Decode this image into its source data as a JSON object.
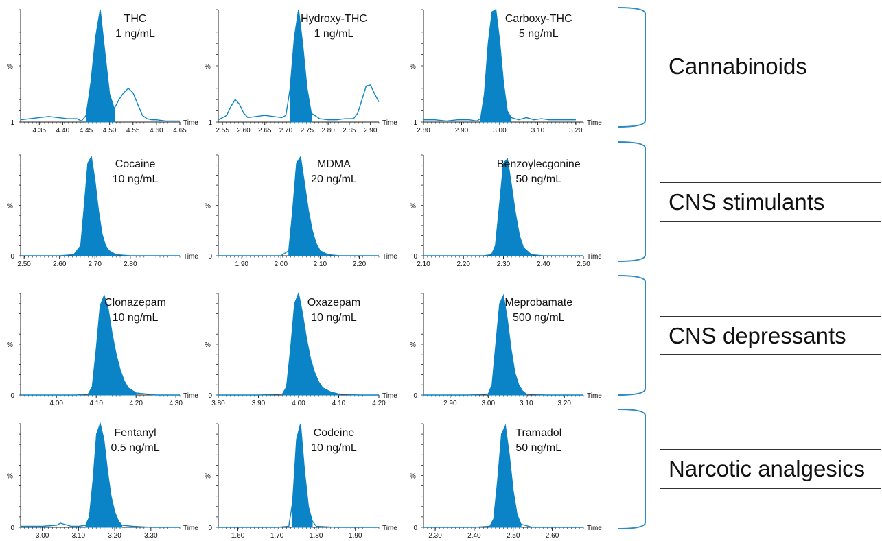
{
  "colors": {
    "peak": "#0a84c6",
    "axis": "#222222",
    "bracket": "#2b8bc2"
  },
  "labels": {
    "time": "Time",
    "percent": "%",
    "y_bottom_row1": "1",
    "y_bottom_other": "0"
  },
  "groups": [
    {
      "name": "Cannabinoids"
    },
    {
      "name": "CNS stimulants"
    },
    {
      "name": "CNS depressants"
    },
    {
      "name": "Narcotic analgesics"
    }
  ],
  "chart_data": [
    {
      "type": "area",
      "compound": "THC",
      "concentration": "1 ng/mL",
      "xlim": [
        4.31,
        4.65
      ],
      "xticks": [
        "4.35",
        "4.40",
        "4.45",
        "4.50",
        "4.55",
        "4.60",
        "4.65"
      ],
      "y_bottom_label": "1",
      "peak_rt": 4.48,
      "fill_range": [
        4.445,
        4.515
      ],
      "x": [
        4.31,
        4.33,
        4.35,
        4.37,
        4.39,
        4.41,
        4.43,
        4.44,
        4.45,
        4.46,
        4.47,
        4.48,
        4.49,
        4.5,
        4.51,
        4.52,
        4.53,
        4.54,
        4.55,
        4.56,
        4.57,
        4.58,
        4.59,
        4.6,
        4.62,
        4.64,
        4.65
      ],
      "y": [
        0.02,
        0.03,
        0.04,
        0.05,
        0.04,
        0.03,
        0.03,
        0.01,
        0.06,
        0.35,
        0.75,
        1.0,
        0.62,
        0.25,
        0.12,
        0.2,
        0.26,
        0.3,
        0.26,
        0.16,
        0.06,
        0.03,
        0.02,
        0.02,
        0.01,
        0.01,
        0.01
      ]
    },
    {
      "type": "area",
      "compound": "Hydroxy-THC",
      "concentration": "1 ng/mL",
      "xlim": [
        2.54,
        2.92
      ],
      "xticks": [
        "2.55",
        "2.60",
        "2.65",
        "2.70",
        "2.75",
        "2.80",
        "2.85",
        "2.90"
      ],
      "y_bottom_label": "1",
      "peak_rt": 2.73,
      "fill_range": [
        2.705,
        2.765
      ],
      "x": [
        2.54,
        2.56,
        2.57,
        2.58,
        2.59,
        2.6,
        2.61,
        2.63,
        2.65,
        2.67,
        2.69,
        2.7,
        2.71,
        2.72,
        2.73,
        2.74,
        2.75,
        2.76,
        2.78,
        2.8,
        2.82,
        2.84,
        2.86,
        2.87,
        2.88,
        2.89,
        2.9,
        2.91,
        2.92
      ],
      "y": [
        0.02,
        0.06,
        0.14,
        0.2,
        0.16,
        0.08,
        0.04,
        0.05,
        0.06,
        0.05,
        0.04,
        0.06,
        0.3,
        0.75,
        1.0,
        0.68,
        0.3,
        0.08,
        0.03,
        0.02,
        0.02,
        0.03,
        0.03,
        0.08,
        0.2,
        0.32,
        0.33,
        0.25,
        0.18
      ]
    },
    {
      "type": "area",
      "compound": "Carboxy-THC",
      "concentration": "5 ng/mL",
      "xlim": [
        2.8,
        3.22
      ],
      "xticks": [
        "2.80",
        "2.90",
        "3.00",
        "3.10",
        "3.20"
      ],
      "y_bottom_label": "1",
      "peak_rt": 2.985,
      "fill_range": [
        2.95,
        3.03
      ],
      "x": [
        2.8,
        2.83,
        2.86,
        2.89,
        2.92,
        2.94,
        2.95,
        2.96,
        2.97,
        2.98,
        2.99,
        3.0,
        3.01,
        3.02,
        3.03,
        3.05,
        3.07,
        3.09,
        3.11,
        3.13,
        3.15,
        3.18,
        3.2
      ],
      "y": [
        0.02,
        0.02,
        0.01,
        0.02,
        0.02,
        0.01,
        0.03,
        0.25,
        0.7,
        0.98,
        1.0,
        0.72,
        0.35,
        0.1,
        0.04,
        0.02,
        0.04,
        0.02,
        0.03,
        0.02,
        0.02,
        0.02,
        0.02
      ]
    },
    {
      "type": "area",
      "compound": "Cocaine",
      "concentration": "10 ng/mL",
      "xlim": [
        2.49,
        2.94
      ],
      "xticks": [
        "2.50",
        "2.60",
        "2.70",
        "2.80"
      ],
      "y_bottom_label": "0",
      "peak_rt": 2.688,
      "fill_range": [
        2.64,
        2.76
      ],
      "x": [
        2.49,
        2.55,
        2.6,
        2.64,
        2.66,
        2.67,
        2.68,
        2.69,
        2.7,
        2.71,
        2.72,
        2.73,
        2.74,
        2.76,
        2.8,
        2.85,
        2.9,
        2.94
      ],
      "y": [
        0,
        0,
        0,
        0.01,
        0.1,
        0.5,
        0.92,
        0.98,
        0.75,
        0.45,
        0.22,
        0.1,
        0.05,
        0.01,
        0,
        0,
        0,
        0
      ]
    },
    {
      "type": "area",
      "compound": "MDMA",
      "concentration": "20 ng/mL",
      "xlim": [
        1.84,
        2.25
      ],
      "xticks": [
        "1.90",
        "2.00",
        "2.10",
        "2.20"
      ],
      "y_bottom_label": "0",
      "peak_rt": 2.047,
      "fill_range": [
        2.01,
        2.12
      ],
      "x": [
        1.84,
        1.9,
        1.95,
        2.0,
        2.02,
        2.03,
        2.04,
        2.05,
        2.06,
        2.07,
        2.08,
        2.09,
        2.1,
        2.12,
        2.15,
        2.2,
        2.25
      ],
      "y": [
        0,
        0,
        0,
        0,
        0.05,
        0.45,
        0.92,
        0.98,
        0.72,
        0.45,
        0.25,
        0.12,
        0.05,
        0.01,
        0,
        0,
        0
      ]
    },
    {
      "type": "area",
      "compound": "Benzoylecgonine",
      "concentration": "50 ng/mL",
      "xlim": [
        2.1,
        2.5
      ],
      "xticks": [
        "2.10",
        "2.20",
        "2.30",
        "2.40",
        "2.50"
      ],
      "y_bottom_label": "0",
      "peak_rt": 2.305,
      "fill_range": [
        2.27,
        2.37
      ],
      "x": [
        2.1,
        2.2,
        2.25,
        2.27,
        2.28,
        2.29,
        2.3,
        2.31,
        2.32,
        2.33,
        2.34,
        2.35,
        2.37,
        2.4,
        2.45,
        2.5
      ],
      "y": [
        0,
        0,
        0,
        0.01,
        0.1,
        0.5,
        0.92,
        0.96,
        0.7,
        0.42,
        0.2,
        0.08,
        0.01,
        0,
        0,
        0
      ]
    },
    {
      "type": "area",
      "compound": "Clonazepam",
      "concentration": "10 ng/mL",
      "xlim": [
        3.91,
        4.31
      ],
      "xticks": [
        "4.00",
        "4.10",
        "4.20",
        "4.30"
      ],
      "y_bottom_label": "0",
      "peak_rt": 4.12,
      "fill_range": [
        4.08,
        4.2
      ],
      "x": [
        3.91,
        4.0,
        4.05,
        4.08,
        4.09,
        4.1,
        4.11,
        4.12,
        4.13,
        4.14,
        4.15,
        4.16,
        4.17,
        4.18,
        4.2,
        4.25,
        4.31
      ],
      "y": [
        0,
        0,
        0,
        0.01,
        0.08,
        0.45,
        0.88,
        0.98,
        0.85,
        0.6,
        0.4,
        0.25,
        0.14,
        0.07,
        0.02,
        0,
        0
      ]
    },
    {
      "type": "area",
      "compound": "Oxazepam",
      "concentration": "10 ng/mL",
      "xlim": [
        3.8,
        4.2
      ],
      "xticks": [
        "3.80",
        "3.90",
        "4.00",
        "4.10",
        "4.20"
      ],
      "y_bottom_label": "0",
      "peak_rt": 4.0,
      "fill_range": [
        3.96,
        4.1
      ],
      "x": [
        3.8,
        3.9,
        3.96,
        3.97,
        3.98,
        3.99,
        4.0,
        4.01,
        4.02,
        4.03,
        4.04,
        4.05,
        4.06,
        4.08,
        4.1,
        4.15,
        4.2
      ],
      "y": [
        0,
        0,
        0.01,
        0.08,
        0.45,
        0.9,
        1.0,
        0.8,
        0.55,
        0.35,
        0.22,
        0.13,
        0.07,
        0.03,
        0.01,
        0,
        0
      ]
    },
    {
      "type": "area",
      "compound": "Meprobamate",
      "concentration": "500 ng/mL",
      "xlim": [
        2.83,
        3.25
      ],
      "xticks": [
        "2.90",
        "3.00",
        "3.10",
        "3.20"
      ],
      "y_bottom_label": "0",
      "peak_rt": 3.04,
      "fill_range": [
        3.0,
        3.1
      ],
      "x": [
        2.83,
        2.9,
        2.95,
        3.0,
        3.01,
        3.02,
        3.03,
        3.04,
        3.05,
        3.06,
        3.07,
        3.08,
        3.09,
        3.1,
        3.15,
        3.2,
        3.25
      ],
      "y": [
        0,
        0,
        0,
        0.01,
        0.1,
        0.5,
        0.9,
        0.98,
        0.75,
        0.45,
        0.22,
        0.1,
        0.04,
        0.01,
        0,
        0,
        0
      ]
    },
    {
      "type": "area",
      "compound": "Fentanyl",
      "concentration": "0.5 ng/mL",
      "xlim": [
        2.94,
        3.38
      ],
      "xticks": [
        "3.00",
        "3.10",
        "3.20",
        "3.30"
      ],
      "y_bottom_label": "0",
      "peak_rt": 3.16,
      "fill_range": [
        3.12,
        3.22
      ],
      "x": [
        2.94,
        3.0,
        3.04,
        3.05,
        3.06,
        3.07,
        3.08,
        3.1,
        3.12,
        3.13,
        3.14,
        3.15,
        3.16,
        3.17,
        3.18,
        3.19,
        3.2,
        3.21,
        3.22,
        3.25,
        3.3,
        3.38
      ],
      "y": [
        0.01,
        0.01,
        0.02,
        0.04,
        0.03,
        0.02,
        0.01,
        0.01,
        0.02,
        0.1,
        0.45,
        0.9,
        1.0,
        0.85,
        0.55,
        0.3,
        0.15,
        0.06,
        0.02,
        0.01,
        0,
        0
      ]
    },
    {
      "type": "area",
      "compound": "Codeine",
      "concentration": "10 ng/mL",
      "xlim": [
        1.55,
        1.96
      ],
      "xticks": [
        "1.60",
        "1.70",
        "1.80",
        "1.90"
      ],
      "y_bottom_label": "0",
      "peak_rt": 1.76,
      "fill_range": [
        1.735,
        1.79
      ],
      "x": [
        1.55,
        1.6,
        1.7,
        1.73,
        1.74,
        1.75,
        1.76,
        1.77,
        1.78,
        1.79,
        1.8,
        1.85,
        1.9,
        1.96
      ],
      "y": [
        0,
        0,
        0,
        0.01,
        0.25,
        0.85,
        1.0,
        0.55,
        0.2,
        0.06,
        0.01,
        0,
        0,
        0
      ]
    },
    {
      "type": "area",
      "compound": "Tramadol",
      "concentration": "50 ng/mL",
      "xlim": [
        2.27,
        2.68
      ],
      "xticks": [
        "2.30",
        "2.40",
        "2.50",
        "2.60"
      ],
      "y_bottom_label": "0",
      "peak_rt": 2.478,
      "fill_range": [
        2.44,
        2.52
      ],
      "x": [
        2.27,
        2.3,
        2.4,
        2.44,
        2.45,
        2.46,
        2.47,
        2.48,
        2.49,
        2.5,
        2.51,
        2.52,
        2.55,
        2.6,
        2.68
      ],
      "y": [
        0,
        0,
        0,
        0.01,
        0.08,
        0.45,
        0.9,
        0.98,
        0.7,
        0.35,
        0.12,
        0.03,
        0,
        0,
        0
      ]
    }
  ]
}
